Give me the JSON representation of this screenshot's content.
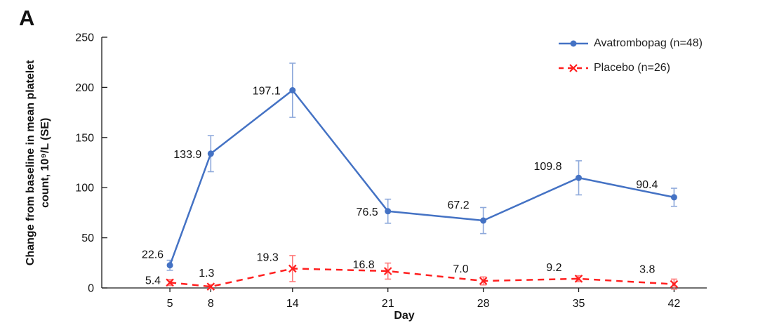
{
  "panel_label": "A",
  "colors": {
    "axis": "#1a1a1a",
    "avatrombopag": "#4472C4",
    "avatrombopag_error": "#8EA9DB",
    "placebo": "#FF1F1F",
    "placebo_error": "#FF7C7C",
    "background": "#FFFFFF"
  },
  "chart_data": {
    "type": "line",
    "title": "",
    "xlabel": "Day",
    "ylabel": "Change from baseline in mean platelet count, 10⁹/L (SE)",
    "ylabel_lines": [
      "Change from baseline in mean platelet",
      "count, 10⁹/L (SE)"
    ],
    "x": [
      5,
      8,
      14,
      21,
      28,
      35,
      42
    ],
    "xtick_labels": [
      "5",
      "8",
      "14",
      "21",
      "28",
      "35",
      "42"
    ],
    "xlim": [
      0,
      44.4
    ],
    "ylim": [
      0,
      250
    ],
    "yticks": [
      0,
      50,
      100,
      150,
      200,
      250
    ],
    "grid": false,
    "legend_position": "top-right",
    "error_bar_unit": "SE",
    "series": [
      {
        "name": "Avatrombopag (n=48)",
        "values": [
          22.6,
          133.9,
          197.1,
          76.5,
          67.2,
          109.8,
          90.4
        ],
        "labels": [
          "22.6",
          "133.9",
          "197.1",
          "76.5",
          "67.2",
          "109.8",
          "90.4"
        ],
        "se": [
          5,
          18,
          27,
          12,
          13,
          17,
          9
        ],
        "color": "#4472C4",
        "error_color": "#8EA9DB",
        "marker": "circle",
        "line_style": "solid"
      },
      {
        "name": "Placebo (n=26)",
        "values": [
          5.4,
          1.3,
          19.3,
          16.8,
          7.0,
          9.2,
          3.8
        ],
        "labels": [
          "5.4",
          "1.3",
          "19.3",
          "16.8",
          "7.0",
          "9.2",
          "3.8"
        ],
        "se": [
          3,
          2,
          13,
          8,
          4,
          3,
          5
        ],
        "color": "#FF1F1F",
        "error_color": "#FF7C7C",
        "marker": "x",
        "line_style": "dashed"
      }
    ]
  }
}
